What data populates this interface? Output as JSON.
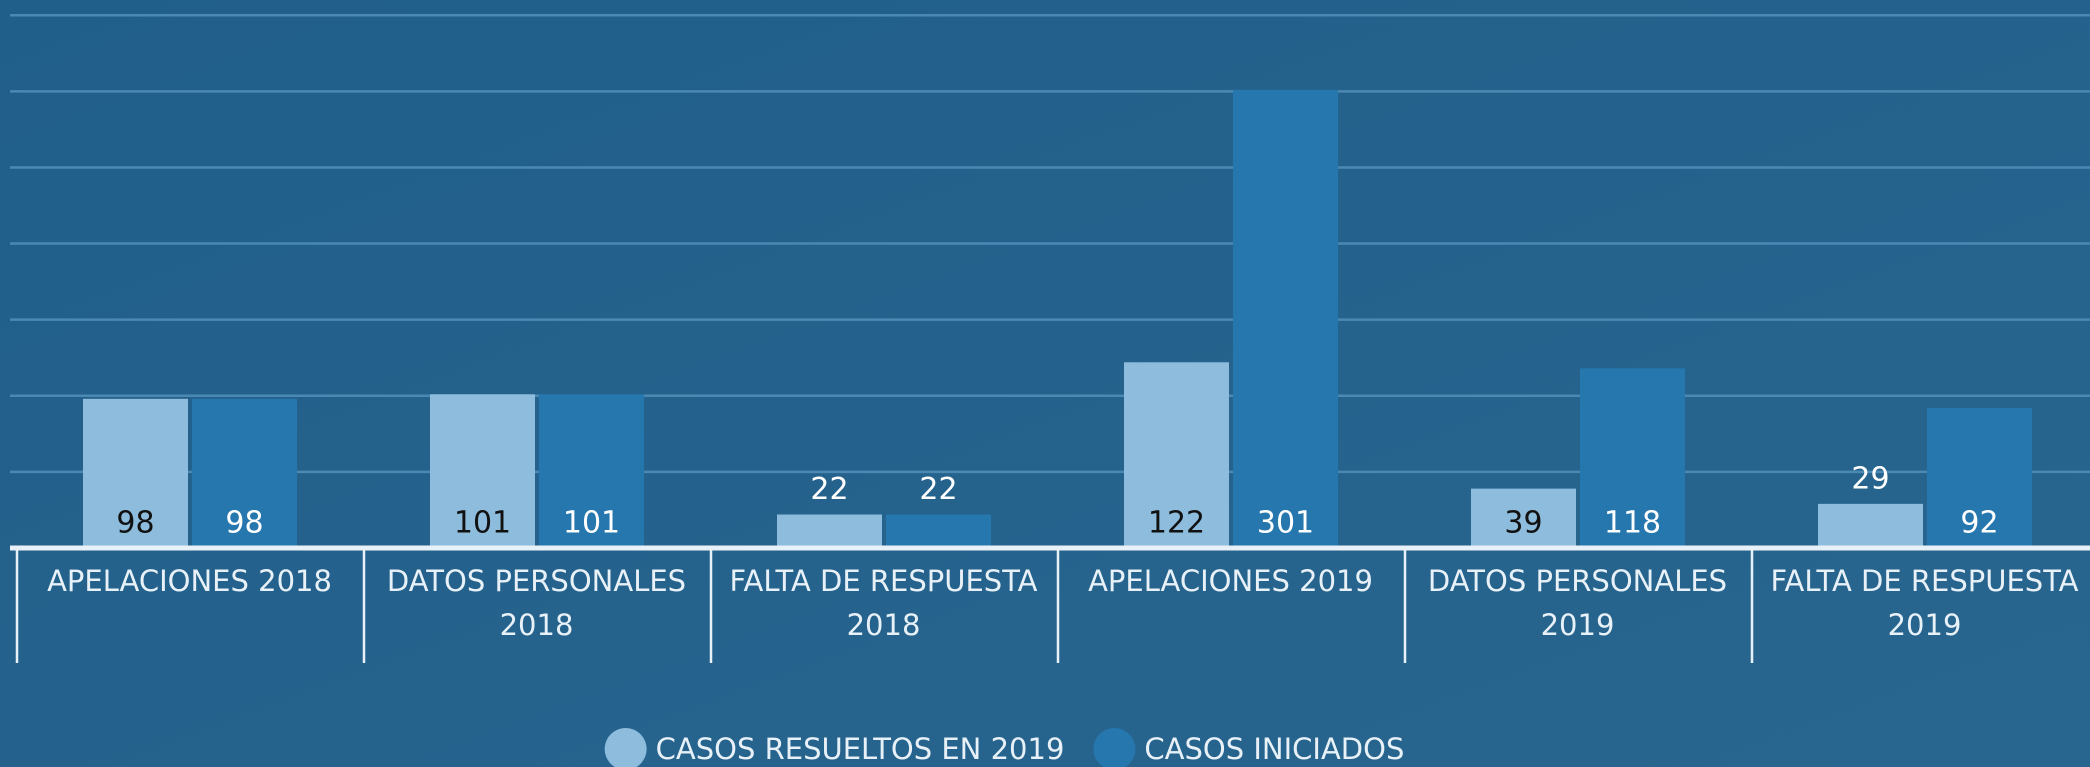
{
  "chart_data": {
    "type": "bar",
    "categories": [
      "APELACIONES 2018",
      "DATOS PERSONALES 2018",
      "FALTA DE RESPUESTA 2018",
      "APELACIONES 2019",
      "DATOS PERSONALES 2019",
      "FALTA DE RESPUESTA 2019"
    ],
    "series": [
      {
        "name": "CASOS RESUELTOS EN 2019",
        "color": "#8dbcdd",
        "values": [
          98,
          101,
          22,
          122,
          39,
          29
        ]
      },
      {
        "name": "CASOS INICIADOS",
        "color": "#2577ae",
        "values": [
          98,
          101,
          22,
          301,
          118,
          92
        ]
      }
    ],
    "ylim": [
      0,
      360
    ],
    "yticks": [
      0,
      50,
      100,
      150,
      200,
      250,
      300,
      350
    ],
    "grid": true,
    "legend": "bottom"
  }
}
